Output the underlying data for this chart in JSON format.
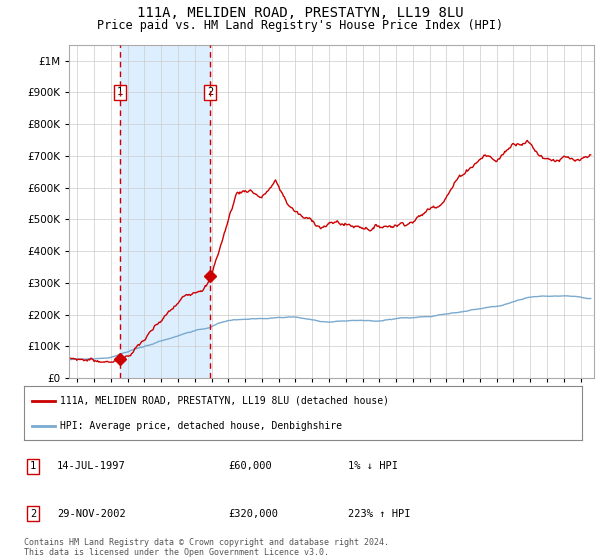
{
  "title": "111A, MELIDEN ROAD, PRESTATYN, LL19 8LU",
  "subtitle": "Price paid vs. HM Land Registry's House Price Index (HPI)",
  "title_fontsize": 10,
  "subtitle_fontsize": 8.5,
  "hpi_color": "#7aaad0",
  "price_color": "#cc0000",
  "point1_date_num": 1997.54,
  "point1_price": 60000,
  "point2_date_num": 2002.91,
  "point2_price": 320000,
  "shade_start": 1997.54,
  "shade_end": 2002.91,
  "ylim": [
    0,
    1050000
  ],
  "xlim": [
    1994.5,
    2025.8
  ],
  "legend_entry1": "111A, MELIDEN ROAD, PRESTATYN, LL19 8LU (detached house)",
  "legend_entry2": "HPI: Average price, detached house, Denbighshire",
  "table_rows": [
    [
      "1",
      "14-JUL-1997",
      "£60,000",
      "1% ↓ HPI"
    ],
    [
      "2",
      "29-NOV-2002",
      "£320,000",
      "223% ↑ HPI"
    ]
  ],
  "footer": "Contains HM Land Registry data © Crown copyright and database right 2024.\nThis data is licensed under the Open Government Licence v3.0.",
  "bg_color": "#ffffff",
  "plot_bg_color": "#ffffff",
  "grid_color": "#cccccc",
  "shade_color": "#ddeeff"
}
